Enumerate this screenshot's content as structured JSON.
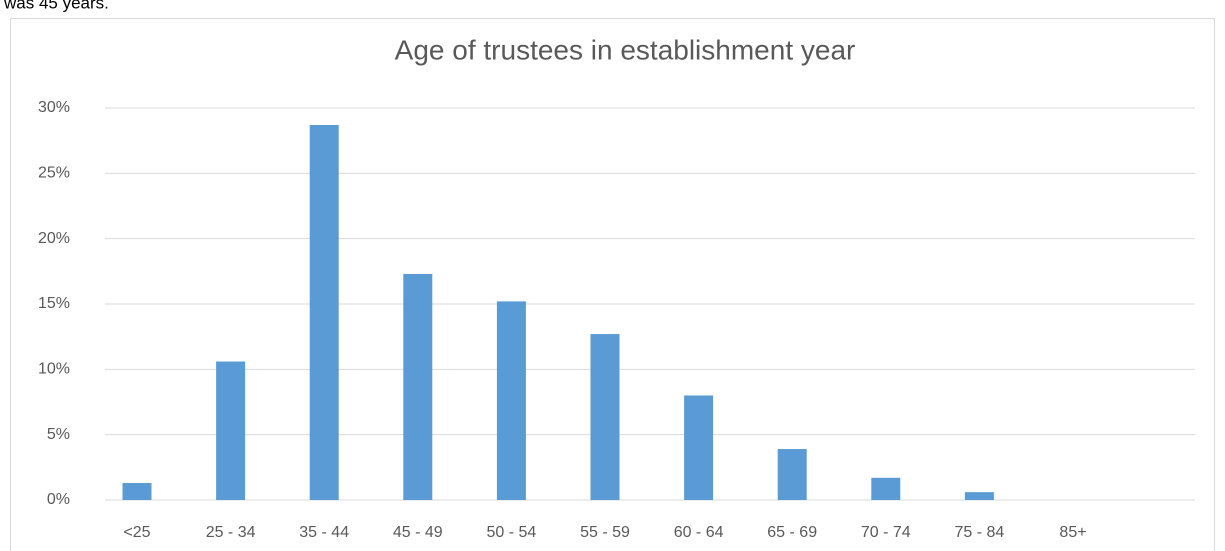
{
  "intro": "was 45 years.",
  "chart_data": {
    "type": "bar",
    "title": "Age of trustees in establishment year",
    "categories": [
      "<25",
      "25 - 34",
      "35 - 44",
      "45 - 49",
      "50 - 54",
      "55 - 59",
      "60 - 64",
      "65 - 69",
      "70 - 74",
      "75 - 84",
      "85+"
    ],
    "values": [
      1.3,
      10.6,
      28.7,
      17.3,
      15.2,
      12.7,
      8.0,
      3.9,
      1.7,
      0.6,
      0
    ],
    "color": "#5b9bd5",
    "ylim": [
      0,
      30
    ],
    "yticks": [
      {
        "value": 0,
        "label": "0%"
      },
      {
        "value": 5,
        "label": "5%"
      },
      {
        "value": 10,
        "label": "10%"
      },
      {
        "value": 15,
        "label": "15%"
      },
      {
        "value": 20,
        "label": "20%"
      },
      {
        "value": 25,
        "label": "25%"
      },
      {
        "value": 30,
        "label": "30%"
      }
    ],
    "grid": true
  }
}
